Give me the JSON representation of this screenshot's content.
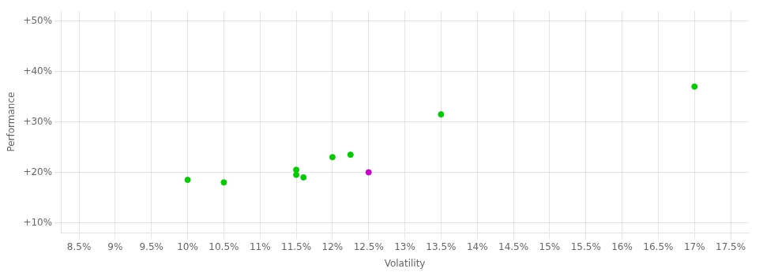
{
  "chart_data": {
    "type": "scatter",
    "xlabel": "Volatility",
    "ylabel": "Performance",
    "series": [
      {
        "color": "#00cc00",
        "x": [
          10.0,
          10.5,
          11.5,
          11.5,
          11.6,
          12.0,
          12.25,
          13.5,
          17.0
        ],
        "values": [
          18.5,
          18.0,
          19.5,
          20.5,
          19.0,
          23.0,
          23.5,
          31.5,
          37.0
        ]
      },
      {
        "color": "#cc00cc",
        "x": [
          12.5
        ],
        "values": [
          20.0
        ]
      }
    ],
    "xlim": [
      8.25,
      17.75
    ],
    "xticks": [
      {
        "value": 8.5,
        "label": "8.5%"
      },
      {
        "value": 9.0,
        "label": "9%"
      },
      {
        "value": 9.5,
        "label": "9.5%"
      },
      {
        "value": 10.0,
        "label": "10%"
      },
      {
        "value": 10.5,
        "label": "10.5%"
      },
      {
        "value": 11.0,
        "label": "11%"
      },
      {
        "value": 11.5,
        "label": "11.5%"
      },
      {
        "value": 12.0,
        "label": "12%"
      },
      {
        "value": 12.5,
        "label": "12.5%"
      },
      {
        "value": 13.0,
        "label": "13%"
      },
      {
        "value": 13.5,
        "label": "13.5%"
      },
      {
        "value": 14.0,
        "label": "14%"
      },
      {
        "value": 14.5,
        "label": "14.5%"
      },
      {
        "value": 15.0,
        "label": "15%"
      },
      {
        "value": 15.5,
        "label": "15.5%"
      },
      {
        "value": 16.0,
        "label": "16%"
      },
      {
        "value": 16.5,
        "label": "16.5%"
      },
      {
        "value": 17.0,
        "label": "17%"
      },
      {
        "value": 17.5,
        "label": "17.5%"
      }
    ],
    "ylim": [
      8.0,
      52.0
    ],
    "yticks": [
      {
        "value": 10,
        "label": "+10%"
      },
      {
        "value": 20,
        "label": "+20%"
      },
      {
        "value": 30,
        "label": "+30%"
      },
      {
        "value": 40,
        "label": "+40%"
      },
      {
        "value": 50,
        "label": "+50%"
      }
    ],
    "grid": true
  }
}
